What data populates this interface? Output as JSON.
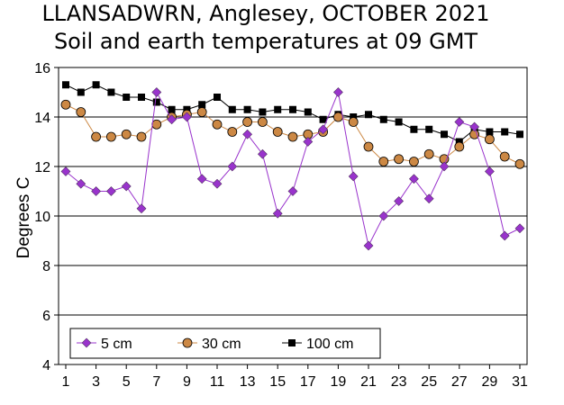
{
  "chart_data": {
    "type": "line",
    "title": "LLANSADWRN, Anglesey, OCTOBER 2021",
    "subtitle": "Soil and earth temperatures at 09 GMT",
    "xlabel": "",
    "ylabel": "Degrees C",
    "xlim": [
      1,
      31
    ],
    "ylim": [
      4,
      16
    ],
    "y_ticks": [
      4,
      6,
      8,
      10,
      12,
      14,
      16
    ],
    "x_ticks": [
      1,
      3,
      5,
      7,
      9,
      11,
      13,
      15,
      17,
      19,
      21,
      23,
      25,
      27,
      29,
      31
    ],
    "grid": "horizontal",
    "legend_position": "bottom-left inside",
    "x": [
      1,
      2,
      3,
      4,
      5,
      6,
      7,
      8,
      9,
      10,
      11,
      12,
      13,
      14,
      15,
      16,
      17,
      18,
      19,
      20,
      21,
      22,
      23,
      24,
      25,
      26,
      27,
      28,
      29,
      30,
      31
    ],
    "series": [
      {
        "name": "5 cm",
        "color": "#9933cc",
        "marker": "diamond",
        "values": [
          11.8,
          11.3,
          11.0,
          11.0,
          11.2,
          10.3,
          15.0,
          13.9,
          14.0,
          11.5,
          11.3,
          12.0,
          13.3,
          12.5,
          10.1,
          11.0,
          13.0,
          13.5,
          15.0,
          11.6,
          8.8,
          10.0,
          10.6,
          11.5,
          10.7,
          12.0,
          13.8,
          13.6,
          11.8,
          9.2,
          9.5
        ]
      },
      {
        "name": "30 cm",
        "color": "#cc8844",
        "marker": "circle",
        "values": [
          14.5,
          14.2,
          13.2,
          13.2,
          13.3,
          13.2,
          13.7,
          14.0,
          14.1,
          14.2,
          13.7,
          13.4,
          13.8,
          13.8,
          13.4,
          13.2,
          13.3,
          13.4,
          14.0,
          13.8,
          12.8,
          12.2,
          12.3,
          12.2,
          12.5,
          12.3,
          12.8,
          13.3,
          13.1,
          12.4,
          12.1
        ]
      },
      {
        "name": "100 cm",
        "color": "#000000",
        "marker": "square",
        "values": [
          15.3,
          15.0,
          15.3,
          15.0,
          14.8,
          14.8,
          14.6,
          14.3,
          14.3,
          14.5,
          14.8,
          14.3,
          14.3,
          14.2,
          14.3,
          14.3,
          14.2,
          13.9,
          14.1,
          14.0,
          14.1,
          13.9,
          13.8,
          13.5,
          13.5,
          13.3,
          13.0,
          13.5,
          13.4,
          13.4,
          13.3
        ]
      }
    ]
  }
}
